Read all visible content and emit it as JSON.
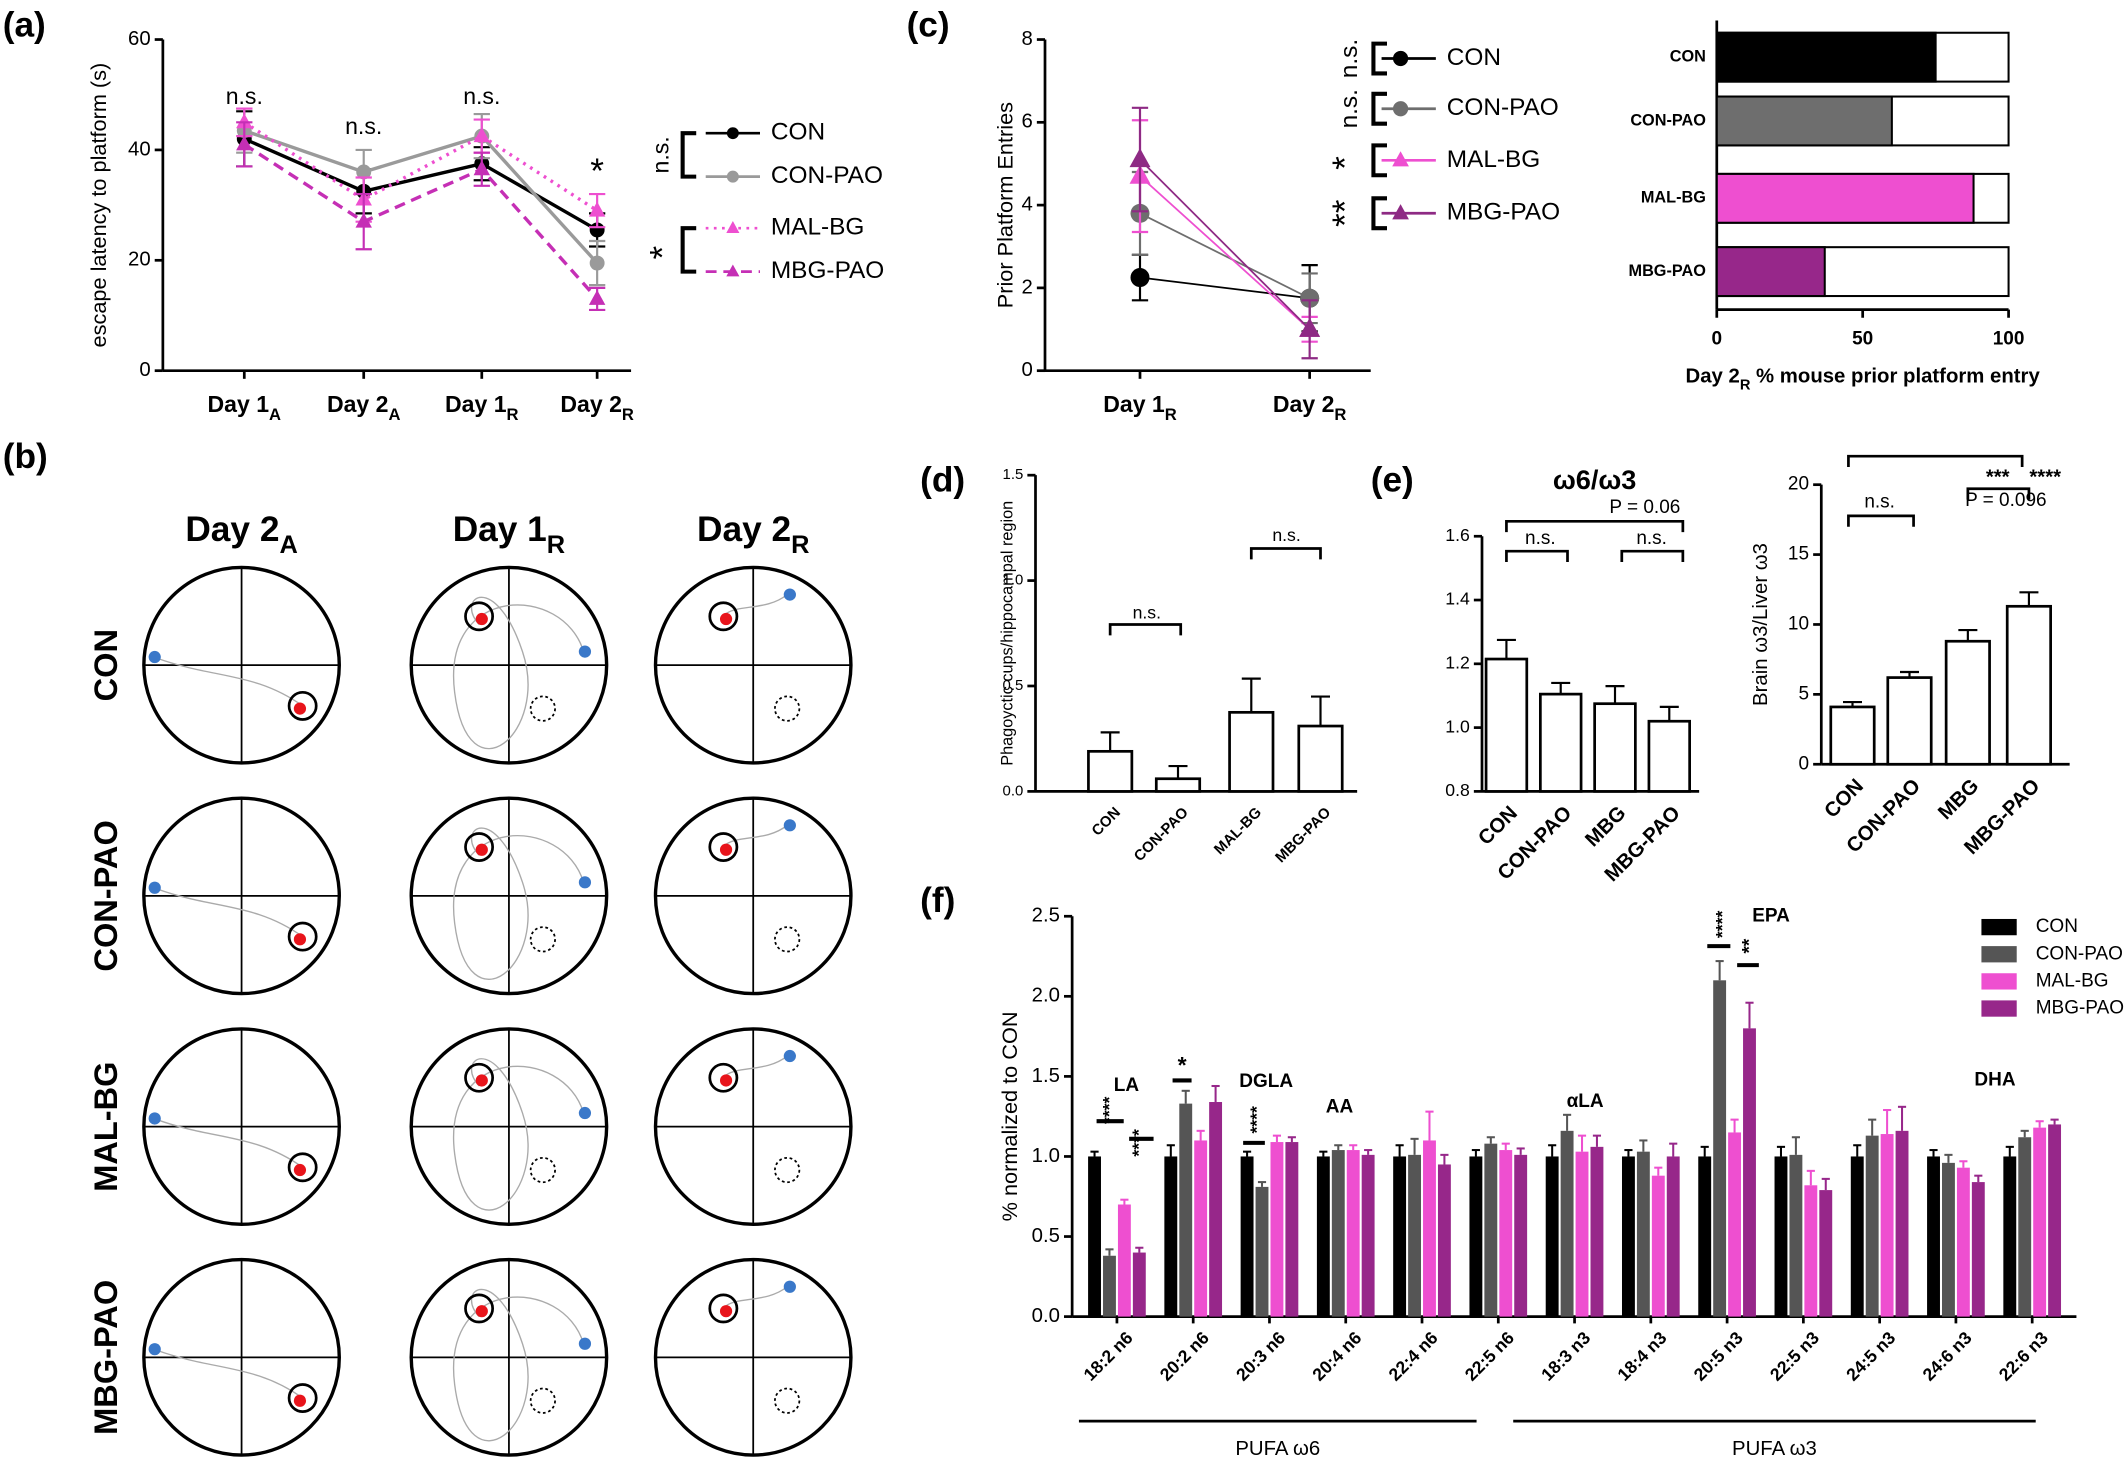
{
  "chart_data": [
    {
      "type": "line",
      "panel_label": "(a)",
      "ylabel": "escape latency to platform (s)",
      "categories": [
        "Day 1",
        "Day 2",
        "Day 1",
        "Day 2"
      ],
      "category_subscripts": [
        "A",
        "A",
        "R",
        "R"
      ],
      "ylim": [
        0,
        60
      ],
      "yticks": [
        0,
        20,
        40,
        60
      ],
      "series": [
        {
          "name": "CON",
          "color": "#000000",
          "marker": "circle",
          "dash": "solid",
          "values": [
            42,
            32.5,
            37.5,
            25.5
          ],
          "errors": [
            5,
            4,
            3,
            3
          ]
        },
        {
          "name": "CON-PAO",
          "color": "#9a9a9a",
          "marker": "circle",
          "dash": "solid",
          "values": [
            43.5,
            36,
            42.5,
            19.5
          ],
          "errors": [
            4,
            4,
            4,
            4
          ]
        },
        {
          "name": "MAL-BG",
          "color": "#ee4fd0",
          "marker": "triangle",
          "dash": "dotted",
          "values": [
            45,
            31,
            42.5,
            29
          ],
          "errors": [
            2.5,
            4,
            3,
            3
          ]
        },
        {
          "name": "MBG-PAO",
          "color": "#c52fb5",
          "marker": "triangle",
          "dash": "dashed",
          "values": [
            41,
            27,
            36.5,
            13
          ],
          "errors": [
            4,
            5,
            3,
            2
          ]
        }
      ],
      "annotations": [
        {
          "text": "n.s."
        },
        {
          "text": "n.s."
        },
        {
          "text": "n.s."
        },
        {
          "text": "*"
        }
      ],
      "legend_annotations": [
        {
          "text": "n.s.",
          "color": "#000000"
        },
        {
          "text": "*",
          "color": "#000000"
        }
      ]
    },
    {
      "type": "line",
      "panel_label": "(c)",
      "ylabel": "Prior Platform Entries",
      "categories": [
        "Day 1",
        "Day 2"
      ],
      "category_subscripts": [
        "R",
        "R"
      ],
      "ylim": [
        0,
        8
      ],
      "yticks": [
        0,
        2,
        4,
        6,
        8
      ],
      "series": [
        {
          "name": "CON",
          "color": "#000000",
          "marker": "circle",
          "dash": "solid",
          "values": [
            2.25,
            1.75
          ],
          "errors": [
            0.55,
            0.8
          ]
        },
        {
          "name": "CON-PAO",
          "color": "#6e6e6e",
          "marker": "circle",
          "dash": "solid",
          "values": [
            3.8,
            1.75
          ],
          "errors": [
            1,
            0.6
          ]
        },
        {
          "name": "MAL-BG",
          "color": "#ee4fd0",
          "marker": "triangle",
          "dash": "solid",
          "values": [
            4.7,
            1.0
          ],
          "errors": [
            1.35,
            0.3
          ]
        },
        {
          "name": "MBG-PAO",
          "color": "#8e2a84",
          "marker": "triangle",
          "dash": "solid",
          "values": [
            5.1,
            1.0
          ],
          "errors": [
            1.25,
            0.7
          ]
        }
      ],
      "annotations": [],
      "legend_annotations": [
        {
          "text": "n.s.",
          "color": "#000000"
        },
        {
          "text": "n.s.",
          "color": "#8a8a8a"
        },
        {
          "text": "*",
          "color": "#ee4fd0"
        },
        {
          "text": "**",
          "color": "#6e1f66"
        }
      ]
    },
    {
      "type": "hbar",
      "categories": [
        "CON",
        "CON-PAO",
        "MAL-BG",
        "MBG-PAO"
      ],
      "values": [
        75,
        60,
        88,
        37
      ],
      "colors": [
        "#000000",
        "#6e6e6e",
        "#ee4fd0",
        "#97278a"
      ],
      "xlim": [
        0,
        100
      ],
      "xticks": [
        0,
        50,
        100
      ],
      "xlabel": "Day 2",
      "xlabel_subscript": "R",
      "xlabel_rest": " % mouse prior platform entry"
    },
    {
      "type": "bar",
      "panel_label": "(d)",
      "ylabel": "Phagoyctic cups/hippocampal region",
      "categories": [
        "CON",
        "CON-PAO",
        "MAL-BG",
        "MBG-PAO"
      ],
      "values": [
        0.19,
        0.06,
        0.375,
        0.31
      ],
      "errors": [
        0.09,
        0.06,
        0.16,
        0.14
      ],
      "ylim": [
        0,
        1.5
      ],
      "yticks": [
        {
          "value": 0,
          "label": "0.0"
        },
        {
          "value": 0.5,
          "label": "0.5"
        },
        {
          "value": 1,
          "label": "1.0"
        },
        {
          "value": 1.5,
          "label": "1.5"
        }
      ],
      "annotations": [
        {
          "text": "n.s."
        },
        {
          "text": "n.s."
        }
      ]
    },
    {
      "type": "bar",
      "panel_label": "(e)",
      "title": "ω6/ω3",
      "categories": [
        "CON",
        "CON-PAO",
        "MBG",
        "MBG-PAO"
      ],
      "values": [
        1.215,
        1.105,
        1.075,
        1.02
      ],
      "errors": [
        0.06,
        0.035,
        0.055,
        0.045
      ],
      "ylim": [
        0.8,
        1.6
      ],
      "yticks": [
        {
          "value": 0.8,
          "label": "0.8"
        },
        {
          "value": 1,
          "label": "1.0"
        },
        {
          "value": 1.2,
          "label": "1.2"
        },
        {
          "value": 1.4,
          "label": "1.4"
        },
        {
          "value": 1.6,
          "label": "1.6"
        }
      ],
      "annotations": [
        {
          "text": "n.s."
        },
        {
          "text": "n.s."
        },
        {
          "text": "P = 0.06"
        }
      ]
    },
    {
      "type": "bar",
      "ylabel": "Brain ω3/Liver ω3",
      "categories": [
        "CON",
        "CON-PAO",
        "MBG",
        "MBG-PAO"
      ],
      "values": [
        4.1,
        6.2,
        8.8,
        11.3
      ],
      "errors": [
        0.35,
        0.4,
        0.8,
        1.0
      ],
      "ylim": [
        0,
        20
      ],
      "yticks": [
        0,
        5,
        10,
        15,
        20
      ],
      "annotations": [
        {
          "text": "n.s."
        },
        {
          "text": "P = 0.096"
        },
        {
          "text": "***"
        },
        {
          "text": "****"
        }
      ]
    },
    {
      "type": "grouped_bar",
      "panel_label": "(f)",
      "ylabel": "% normalized to CON",
      "categories": [
        "18:2 n6",
        "20:2 n6",
        "20:3 n6",
        "20:4 n6",
        "22:4 n6",
        "22:5 n6",
        "18:3 n3",
        "18:4 n3",
        "20:5 n3",
        "22:5 n3",
        "24:5 n3",
        "24:6 n3",
        "22:6 n3"
      ],
      "ylim": [
        0,
        2.5
      ],
      "yticks": [
        {
          "value": 0,
          "label": "0.0"
        },
        {
          "value": 0.5,
          "label": "0.5"
        },
        {
          "value": 1,
          "label": "1.0"
        },
        {
          "value": 1.5,
          "label": "1.5"
        },
        {
          "value": 2,
          "label": "2.0"
        },
        {
          "value": 2.5,
          "label": "2.5"
        }
      ],
      "series": [
        {
          "name": "CON",
          "color": "#000000",
          "values": [
            1,
            1,
            1,
            1,
            1,
            1,
            1,
            1,
            1,
            1,
            1,
            1,
            1
          ],
          "errors": [
            0.03,
            0.07,
            0.03,
            0.03,
            0.07,
            0.04,
            0.07,
            0.04,
            0.06,
            0.06,
            0.07,
            0.04,
            0.06
          ]
        },
        {
          "name": "CON-PAO",
          "color": "#555555",
          "values": [
            0.38,
            1.33,
            0.81,
            1.04,
            1.01,
            1.08,
            1.16,
            1.03,
            2.1,
            1.01,
            1.13,
            0.96,
            1.12
          ],
          "errors": [
            0.04,
            0.08,
            0.03,
            0.03,
            0.1,
            0.04,
            0.1,
            0.07,
            0.12,
            0.11,
            0.1,
            0.05,
            0.04
          ]
        },
        {
          "name": "MAL-BG",
          "color": "#ee4fd0",
          "values": [
            0.7,
            1.1,
            1.09,
            1.04,
            1.1,
            1.04,
            1.03,
            0.88,
            1.15,
            0.82,
            1.14,
            0.93,
            1.18
          ],
          "errors": [
            0.03,
            0.06,
            0.04,
            0.03,
            0.18,
            0.04,
            0.1,
            0.05,
            0.08,
            0.09,
            0.15,
            0.04,
            0.04
          ]
        },
        {
          "name": "MBG-PAO",
          "color": "#97278a",
          "values": [
            0.4,
            1.34,
            1.09,
            1.01,
            0.95,
            1.01,
            1.06,
            1.0,
            1.8,
            0.79,
            1.16,
            0.84,
            1.2
          ],
          "errors": [
            0.03,
            0.1,
            0.03,
            0.03,
            0.06,
            0.04,
            0.07,
            0.08,
            0.16,
            0.07,
            0.15,
            0.04,
            0.03
          ]
        }
      ],
      "annotations": [
        {
          "text": "LA"
        },
        {
          "text": "DGLA"
        },
        {
          "text": "AA"
        },
        {
          "text": "αLA"
        },
        {
          "text": "EPA"
        },
        {
          "text": "DHA"
        },
        {
          "text": "****",
          "color": "#000000"
        },
        {
          "text": "****",
          "color": "#ee4fd0"
        },
        {
          "text": "*",
          "color": "#000000"
        },
        {
          "text": "****",
          "color": "#000000"
        },
        {
          "text": "****",
          "color": "#000000"
        },
        {
          "text": "**",
          "color": "#ee4fd0"
        }
      ],
      "groups": [
        "PUFA ω6",
        "PUFA ω3"
      ]
    }
  ],
  "panel_b": {
    "label": "(b)",
    "columns": [
      "Day 2",
      "Day 1",
      "Day 2"
    ],
    "column_subscripts": [
      "A",
      "R",
      "R"
    ],
    "rows": [
      "CON",
      "CON-PAO",
      "MAL-BG",
      "MBG-PAO"
    ]
  }
}
